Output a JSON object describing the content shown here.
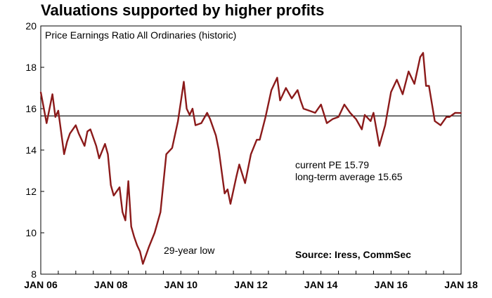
{
  "chart_data": {
    "type": "line",
    "title": "Valuations supported by higher profits",
    "subtitle": "Price Earnings Ratio All Ordinaries (historic)",
    "xlabel": "",
    "ylabel": "",
    "ylim": [
      8,
      20
    ],
    "yticks": [
      8,
      10,
      12,
      14,
      16,
      18,
      20
    ],
    "xlim": [
      "2006-01",
      "2018-01"
    ],
    "xticks": [
      "JAN 06",
      "JAN 08",
      "JAN 10",
      "JAN 12",
      "JAN 14",
      "JAN 16",
      "JAN 18"
    ],
    "grid": false,
    "colors": {
      "series": "#8b1a1a",
      "reference": "#000000"
    },
    "reference_line": {
      "value": 15.65
    },
    "annotations": {
      "current_pe": "current PE 15.79",
      "long_term_average": "long-term average 15.65",
      "low": "29-year low",
      "source": "Source: Iress, CommSec"
    },
    "series": [
      {
        "x": [
          "2006-01",
          "2006-03",
          "2006-05",
          "2006-06",
          "2006-07",
          "2006-09",
          "2006-10",
          "2006-11",
          "2007-01",
          "2007-02",
          "2007-04",
          "2007-05",
          "2007-06",
          "2007-08",
          "2007-09",
          "2007-11",
          "2007-12",
          "2008-01",
          "2008-02",
          "2008-04",
          "2008-05",
          "2008-06",
          "2008-07",
          "2008-08",
          "2008-09",
          "2008-10",
          "2008-11",
          "2008-12",
          "2009-02",
          "2009-04",
          "2009-06",
          "2009-08",
          "2009-10",
          "2009-12",
          "2010-02",
          "2010-03",
          "2010-04",
          "2010-05",
          "2010-06",
          "2010-08",
          "2010-10",
          "2010-11",
          "2011-01",
          "2011-02",
          "2011-04",
          "2011-05",
          "2011-06",
          "2011-08",
          "2011-09",
          "2011-11",
          "2012-01",
          "2012-03",
          "2012-04",
          "2012-06",
          "2012-08",
          "2012-10",
          "2012-11",
          "2013-01",
          "2013-03",
          "2013-05",
          "2013-06",
          "2013-07",
          "2013-09",
          "2013-11",
          "2014-01",
          "2014-03",
          "2014-05",
          "2014-07",
          "2014-09",
          "2014-11",
          "2015-01",
          "2015-03",
          "2015-04",
          "2015-06",
          "2015-07",
          "2015-09",
          "2015-11",
          "2016-01",
          "2016-03",
          "2016-05",
          "2016-07",
          "2016-09",
          "2016-11",
          "2016-12",
          "2017-01",
          "2017-02",
          "2017-04",
          "2017-06",
          "2017-08",
          "2017-09",
          "2017-11",
          "2018-01"
        ],
        "y": [
          16.8,
          15.3,
          16.7,
          15.6,
          15.9,
          13.8,
          14.4,
          14.8,
          15.2,
          14.8,
          14.2,
          14.9,
          15.0,
          14.2,
          13.6,
          14.3,
          13.8,
          12.3,
          11.8,
          12.2,
          11.0,
          10.6,
          12.5,
          10.3,
          9.8,
          9.4,
          9.1,
          8.5,
          9.3,
          10.0,
          11.0,
          13.8,
          14.1,
          15.4,
          17.3,
          16.0,
          15.7,
          16.0,
          15.2,
          15.3,
          15.8,
          15.5,
          14.7,
          14.0,
          11.9,
          12.1,
          11.4,
          12.7,
          13.3,
          12.4,
          13.8,
          14.5,
          14.5,
          15.6,
          16.9,
          17.5,
          16.4,
          17.0,
          16.5,
          16.9,
          16.4,
          16.0,
          15.9,
          15.8,
          16.2,
          15.3,
          15.5,
          15.6,
          16.2,
          15.8,
          15.5,
          15.0,
          15.7,
          15.4,
          15.8,
          14.2,
          15.2,
          16.8,
          17.4,
          16.7,
          17.8,
          17.2,
          18.5,
          18.7,
          17.1,
          17.1,
          15.4,
          15.2,
          15.6,
          15.6,
          15.8,
          15.79
        ]
      }
    ]
  }
}
